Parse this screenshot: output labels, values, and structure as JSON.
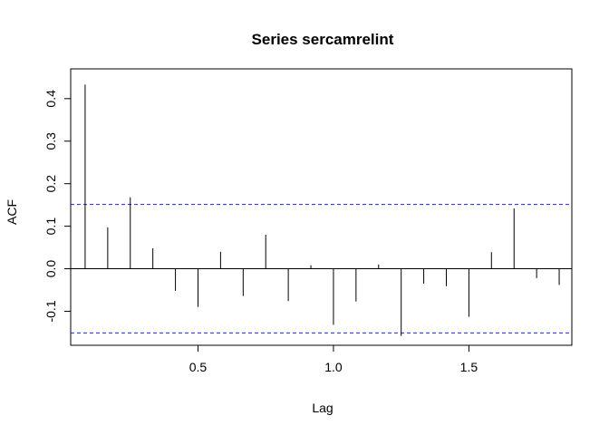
{
  "chart_data": {
    "type": "bar",
    "title": "Series sercamrelint",
    "xlabel": "Lag",
    "ylabel": "ACF",
    "xlim": [
      0.03,
      1.88
    ],
    "ylim": [
      -0.18,
      0.47
    ],
    "x_ticks": [
      0.5,
      1.0,
      1.5
    ],
    "x_tick_labels": [
      "0.5",
      "1.0",
      "1.5"
    ],
    "y_ticks": [
      -0.1,
      0.0,
      0.1,
      0.2,
      0.3,
      0.4
    ],
    "y_tick_labels": [
      "-0.1",
      "0.0",
      "0.1",
      "0.2",
      "0.3",
      "0.4"
    ],
    "confidence_bound": 0.151,
    "confidence_color": "#2222ee",
    "grid": false,
    "x": [
      0.0833,
      0.1667,
      0.25,
      0.3333,
      0.4167,
      0.5,
      0.5833,
      0.6667,
      0.75,
      0.8333,
      0.9167,
      1.0,
      1.0833,
      1.1667,
      1.25,
      1.3333,
      1.4167,
      1.5,
      1.5833,
      1.6667,
      1.75,
      1.8333
    ],
    "values": [
      0.433,
      0.097,
      0.168,
      0.048,
      -0.052,
      -0.09,
      0.04,
      -0.064,
      0.08,
      -0.076,
      0.008,
      -0.132,
      -0.077,
      0.01,
      -0.158,
      -0.035,
      -0.041,
      -0.113,
      0.039,
      0.142,
      -0.022,
      -0.038
    ]
  }
}
